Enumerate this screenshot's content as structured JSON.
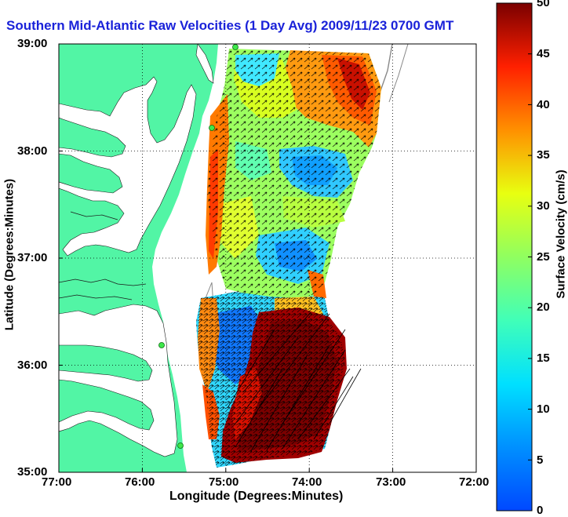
{
  "title": "Southern Mid-Atlantic Raw Velocities (1 Day Avg) 2009/11/23 0700 GMT",
  "map": {
    "xlabel": "Longitude (Degrees:Minutes)",
    "ylabel": "Latitude (Degrees:Minutes)",
    "x_ticks": [
      "77:00",
      "76:00",
      "75:00",
      "74:00",
      "73:00",
      "72:00"
    ],
    "y_ticks": [
      "39:00",
      "38:00",
      "37:00",
      "36:00",
      "35:00"
    ],
    "lon_range": [
      -77,
      -72
    ],
    "lat_range": [
      35,
      39
    ],
    "grid": true,
    "land_color": "#52f5a5",
    "stations_color": "#3de84a"
  },
  "colorbar": {
    "label": "Surface Velocity (cm/s)",
    "ticks": [
      "0",
      "5",
      "10",
      "15",
      "20",
      "25",
      "30",
      "35",
      "40",
      "45",
      "50"
    ],
    "range": [
      0,
      50
    ],
    "colormap": "jet"
  }
}
